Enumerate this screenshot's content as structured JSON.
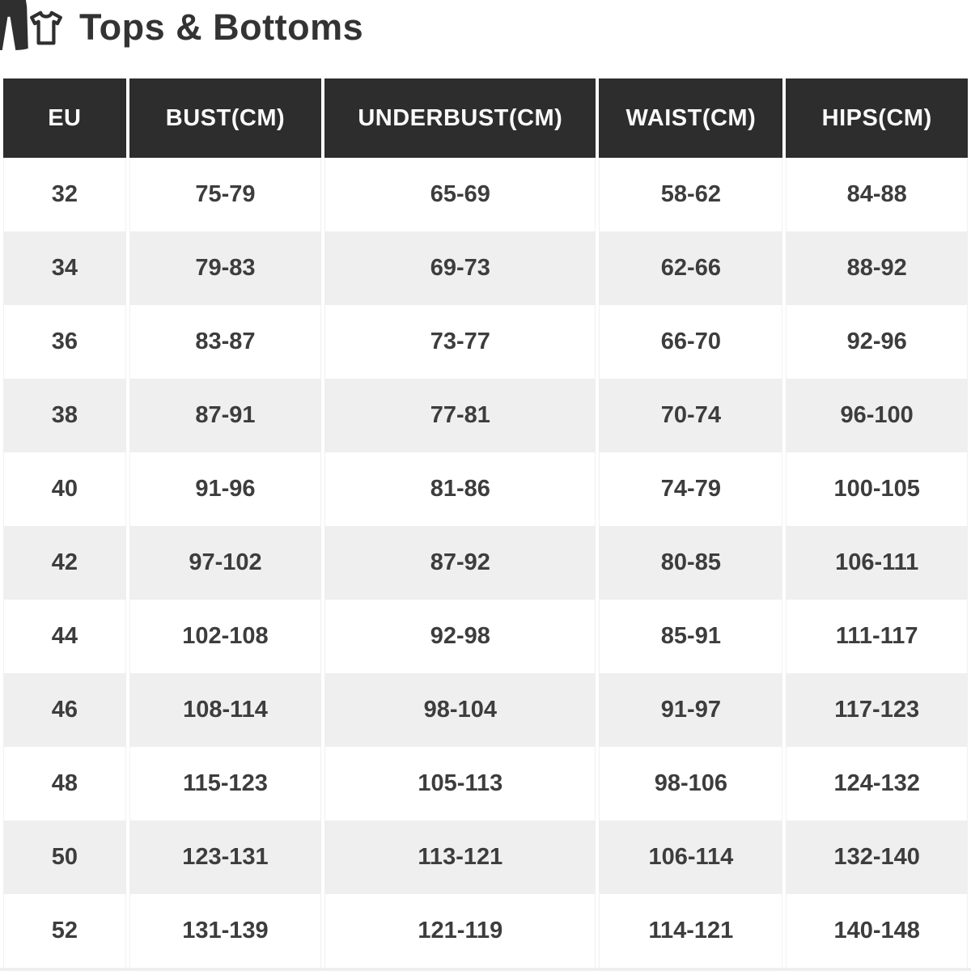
{
  "page": {
    "title": "Tops & Bottoms"
  },
  "icons": [
    "pants-icon",
    "tshirt-icon"
  ],
  "table": {
    "columns": [
      "EU",
      "BUST(CM)",
      "UNDERBUST(CM)",
      "WAIST(CM)",
      "HIPS(CM)"
    ],
    "rows": [
      [
        "32",
        "75-79",
        "65-69",
        "58-62",
        "84-88"
      ],
      [
        "34",
        "79-83",
        "69-73",
        "62-66",
        "88-92"
      ],
      [
        "36",
        "83-87",
        "73-77",
        "66-70",
        "92-96"
      ],
      [
        "38",
        "87-91",
        "77-81",
        "70-74",
        "96-100"
      ],
      [
        "40",
        "91-96",
        "81-86",
        "74-79",
        "100-105"
      ],
      [
        "42",
        "97-102",
        "87-92",
        "80-85",
        "106-111"
      ],
      [
        "44",
        "102-108",
        "92-98",
        "85-91",
        "111-117"
      ],
      [
        "46",
        "108-114",
        "98-104",
        "91-97",
        "117-123"
      ],
      [
        "48",
        "115-123",
        "105-113",
        "98-106",
        "124-132"
      ],
      [
        "50",
        "123-131",
        "113-121",
        "106-114",
        "132-140"
      ],
      [
        "52",
        "131-139",
        "121-119",
        "114-121",
        "140-148"
      ]
    ]
  },
  "colors": {
    "header_bg": "#2d2d2d",
    "header_text": "#fafafa",
    "row_alt_bg": "#efefef",
    "cell_text": "#3d3d3d",
    "title_text": "#333333",
    "icon_color": "#2f2f2f"
  }
}
